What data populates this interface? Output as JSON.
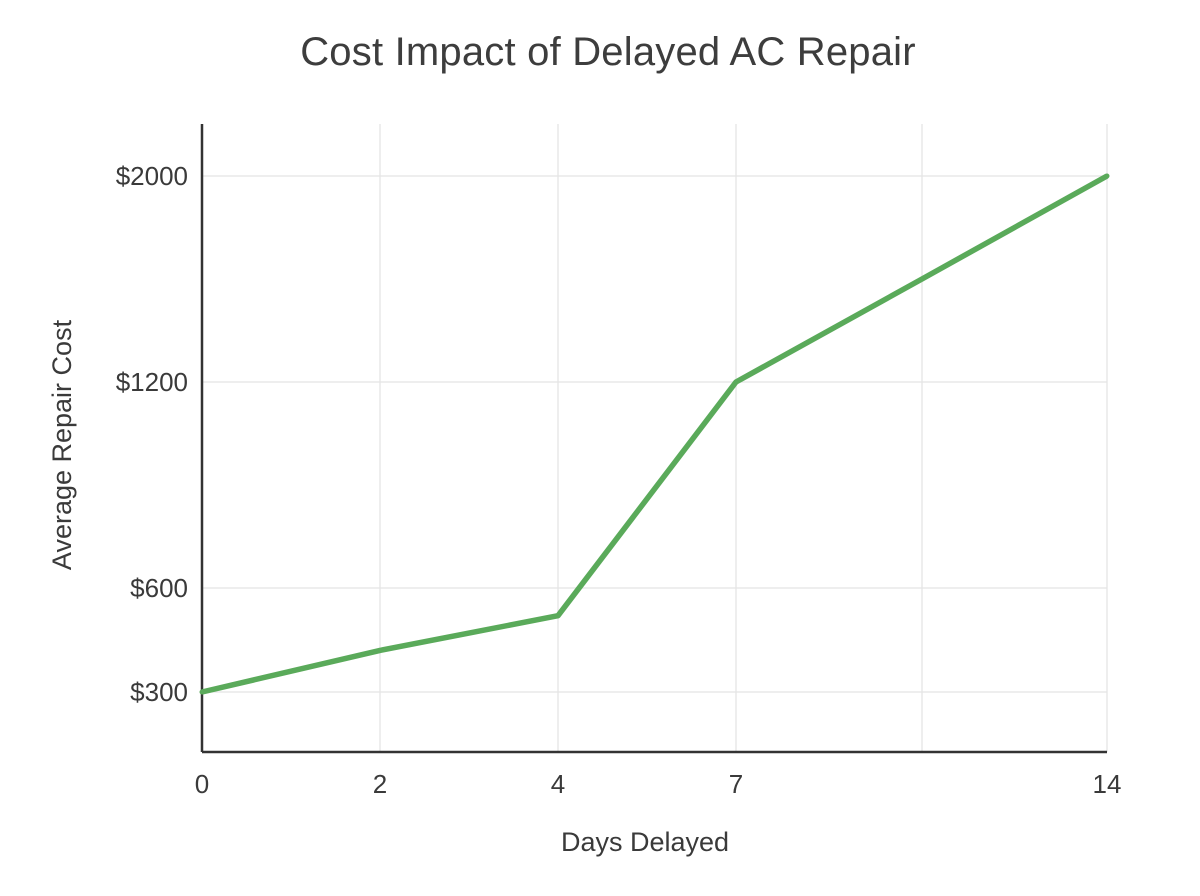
{
  "chart_data": {
    "type": "line",
    "title": "Cost Impact of Delayed AC Repair",
    "xlabel": "Days Delayed",
    "ylabel": "Average Repair Cost",
    "x_tick_labels": [
      "0",
      "2",
      "4",
      "7",
      "",
      "14"
    ],
    "y_tick_labels": [
      "$300",
      "$600",
      "$1200",
      "$2000"
    ],
    "series": [
      {
        "x": [
          0,
          2,
          4,
          7,
          10,
          14
        ],
        "y": [
          300,
          420,
          520,
          1200,
          1600,
          2000
        ]
      }
    ],
    "grid": true,
    "colors": {
      "line": "#5aaa5a",
      "grid": "#e4e4e4",
      "axis": "#333333"
    }
  }
}
